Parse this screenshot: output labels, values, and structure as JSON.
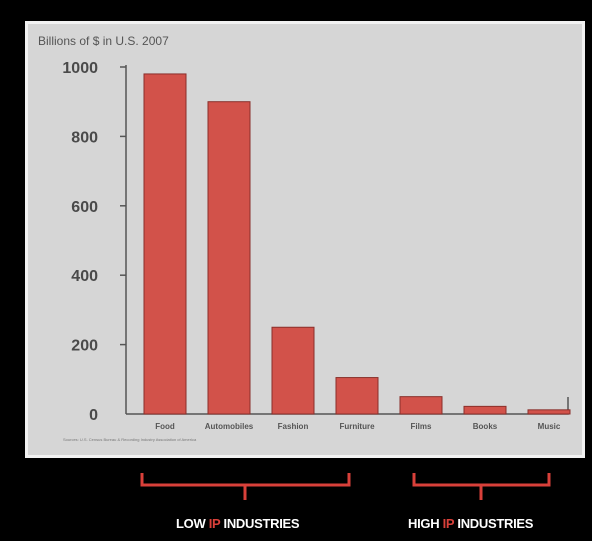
{
  "chart_data": {
    "type": "bar",
    "title": "Billions of $ in U.S. 2007",
    "xlabel": "",
    "ylabel": "",
    "categories": [
      "Food",
      "Automobiles",
      "Fashion",
      "Furniture",
      "Films",
      "Books",
      "Music"
    ],
    "values": [
      980,
      900,
      250,
      105,
      50,
      22,
      12
    ],
    "ylim": [
      0,
      1000
    ],
    "yticks": [
      0,
      200,
      400,
      600,
      800,
      1000
    ],
    "grid": false,
    "bar_color": "#d2524a",
    "source": "Sources: U.S. Census Bureau & Recording Industry Association of America"
  },
  "groups": [
    {
      "prefix": "LOW ",
      "ip": "IP",
      "suffix": " INDUSTRIES"
    },
    {
      "prefix": "HIGH ",
      "ip": "IP",
      "suffix": " INDUSTRIES"
    }
  ],
  "colors": {
    "bracket": "#d9403a",
    "background": "#000000",
    "panel": "#d6d6d6"
  }
}
